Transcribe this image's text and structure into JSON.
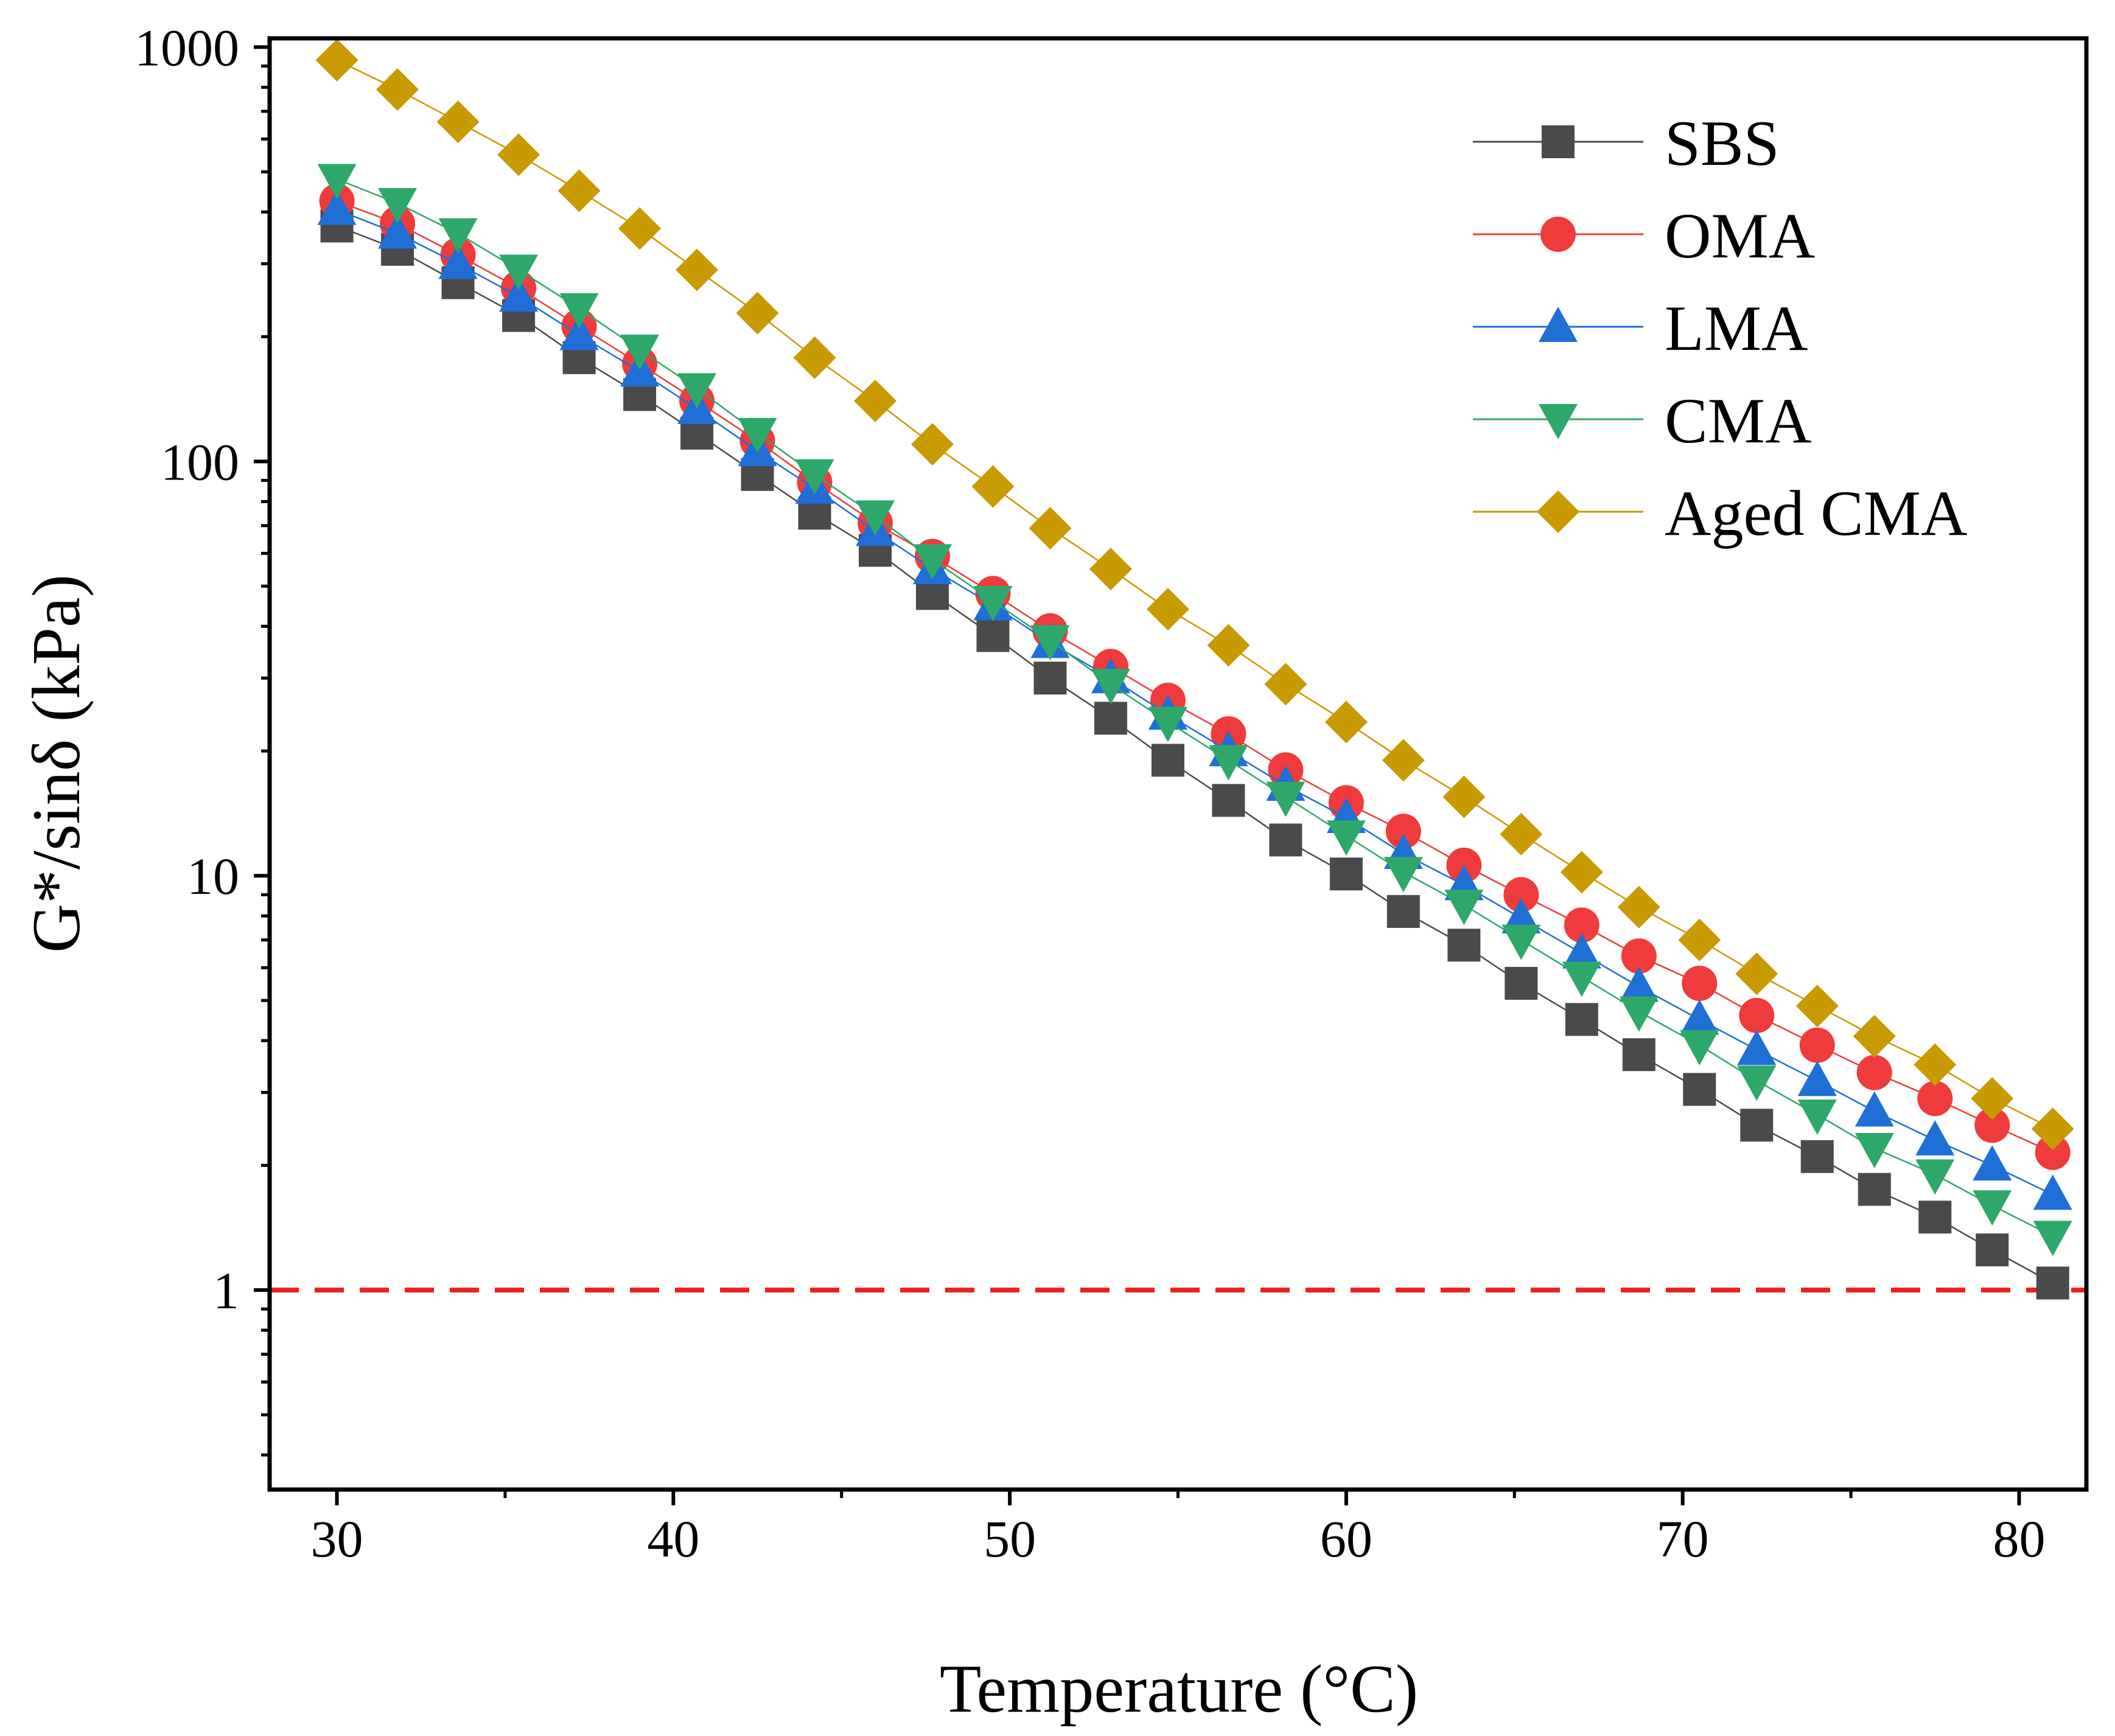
{
  "chart_data": {
    "type": "line",
    "title": "",
    "xlabel": "Temperature (°C)",
    "ylabel": "G*/sinδ (kPa)",
    "xlim": [
      28,
      82
    ],
    "ylim": [
      0.33,
      1050
    ],
    "yscale": "log",
    "xticks": [
      30,
      40,
      50,
      60,
      70,
      80
    ],
    "xtick_labels": [
      "30",
      "40",
      "50",
      "60",
      "70",
      "80"
    ],
    "yticks": [
      1,
      10,
      100,
      1000
    ],
    "ytick_labels": [
      "1",
      "10",
      "100",
      "1000"
    ],
    "grid": false,
    "legend_position": "top-right",
    "x": [
      30.0,
      31.8,
      33.6,
      35.4,
      37.2,
      39.0,
      40.7,
      42.5,
      44.2,
      46.0,
      47.7,
      49.5,
      51.2,
      53.0,
      54.7,
      56.5,
      58.2,
      60.0,
      61.7,
      63.5,
      65.2,
      67.0,
      68.7,
      70.5,
      72.2,
      74.0,
      75.7,
      77.5,
      79.2,
      81.0
    ],
    "series": [
      {
        "name": "SBS",
        "color": "#4a4a4a",
        "marker": "square",
        "values": [
          370,
          325,
          270,
          225,
          178,
          145,
          117,
          93,
          75,
          61,
          48,
          38,
          30,
          24,
          19,
          15.2,
          12.2,
          10.1,
          8.2,
          6.8,
          5.5,
          4.5,
          3.7,
          3.05,
          2.5,
          2.1,
          1.75,
          1.5,
          1.25,
          1.04
        ]
      },
      {
        "name": "OMA",
        "color": "#ef3b3b",
        "marker": "circle",
        "values": [
          425,
          375,
          315,
          262,
          212,
          172,
          140,
          112,
          89,
          71,
          59,
          48,
          39,
          32,
          26.5,
          22,
          18,
          15,
          12.8,
          10.6,
          9,
          7.6,
          6.4,
          5.5,
          4.6,
          3.9,
          3.35,
          2.9,
          2.5,
          2.15
        ]
      },
      {
        "name": "LMA",
        "color": "#1f6fd6",
        "marker": "triangle-up",
        "values": [
          405,
          355,
          300,
          250,
          202,
          165,
          134,
          106,
          86,
          68,
          55,
          45,
          36.5,
          30,
          24.5,
          20,
          16.5,
          13.8,
          11.3,
          9.5,
          7.9,
          6.5,
          5.4,
          4.5,
          3.8,
          3.2,
          2.7,
          2.3,
          2.0,
          1.7
        ]
      },
      {
        "name": "CMA",
        "color": "#2ea86a",
        "marker": "triangle-down",
        "values": [
          480,
          420,
          355,
          290,
          234,
          186,
          150,
          117,
          93,
          74,
          58,
          46,
          37,
          29,
          23.5,
          19,
          15.5,
          12.5,
          10.2,
          8.5,
          7,
          5.7,
          4.7,
          3.9,
          3.2,
          2.65,
          2.2,
          1.9,
          1.6,
          1.35
        ]
      },
      {
        "name": "Aged CMA",
        "color": "#c89a00",
        "marker": "diamond",
        "values": [
          930,
          790,
          660,
          550,
          450,
          365,
          290,
          228,
          178,
          140,
          110,
          87,
          69,
          55,
          44,
          36,
          29,
          23.5,
          19,
          15.5,
          12.6,
          10.2,
          8.4,
          7,
          5.8,
          4.85,
          4.1,
          3.5,
          2.9,
          2.45
        ]
      }
    ],
    "reference_line": {
      "y": 1,
      "color": "#e82222",
      "style": "dashed"
    }
  }
}
